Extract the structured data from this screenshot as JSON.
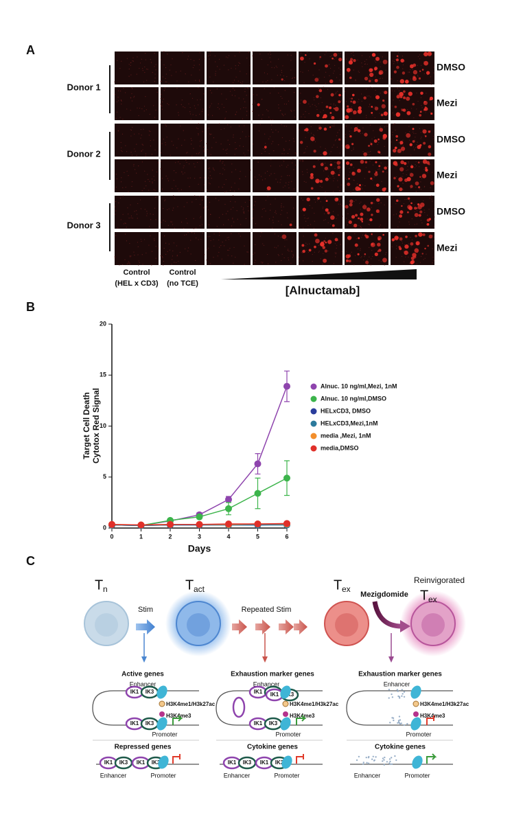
{
  "panel_a": {
    "label": "A",
    "donors": [
      "Donor 1",
      "Donor 2",
      "Donor 3"
    ],
    "row_labels": [
      "DMSO",
      "Mezi",
      "DMSO",
      "Mezi",
      "DMSO",
      "Mezi"
    ],
    "column_labels": [
      [
        "Control",
        "(HEL x CD3)"
      ],
      [
        "Control",
        "(no TCE)"
      ]
    ],
    "gradient_label": "[Alnuctamab]"
  },
  "panel_b": {
    "label": "B"
  },
  "chart_data": {
    "type": "line",
    "ylabel": [
      "Target Cell Death",
      "Cytotox Red Signal"
    ],
    "xlabel": "Days",
    "x": [
      0,
      1,
      2,
      3,
      4,
      5,
      6
    ],
    "xlim": [
      0,
      6
    ],
    "xticks": [
      0,
      1,
      2,
      3,
      4,
      5,
      6
    ],
    "ylim": [
      0,
      20
    ],
    "yticks": [
      0,
      5,
      10,
      15,
      20
    ],
    "legend": "right",
    "series": [
      {
        "name": "Alnuc. 10 ng/ml,Mezi, 1nM",
        "color": "#8e44ad",
        "values": [
          0.3,
          0.25,
          0.7,
          1.3,
          2.8,
          6.3,
          13.9
        ],
        "errors": [
          null,
          null,
          null,
          0.2,
          0.3,
          1.0,
          1.5
        ]
      },
      {
        "name": "Alnuc. 10 ng/ml,DMSO",
        "color": "#3cb44b",
        "values": [
          0.3,
          0.25,
          0.75,
          1.1,
          1.9,
          3.4,
          4.9
        ],
        "errors": [
          null,
          null,
          null,
          0.2,
          0.6,
          1.5,
          1.7
        ]
      },
      {
        "name": "HELxCD3, DMSO",
        "color": "#2a3d9c",
        "values": [
          0.3,
          0.25,
          0.3,
          0.3,
          0.3,
          0.3,
          0.35
        ],
        "errors": [
          null,
          null,
          null,
          null,
          null,
          null,
          null
        ]
      },
      {
        "name": "HELxCD3,Mezi,1nM",
        "color": "#2b7a9c",
        "values": [
          0.3,
          0.25,
          0.3,
          0.3,
          0.3,
          0.3,
          0.3
        ],
        "errors": [
          null,
          null,
          null,
          null,
          null,
          null,
          null
        ]
      },
      {
        "name": "media ,Mezi, 1nM",
        "color": "#f28e2b",
        "values": [
          0.35,
          0.3,
          0.35,
          0.35,
          0.35,
          0.4,
          0.4
        ],
        "errors": [
          null,
          null,
          null,
          null,
          null,
          null,
          null
        ]
      },
      {
        "name": "media,DMSO",
        "color": "#e0302a",
        "values": [
          0.35,
          0.3,
          0.35,
          0.35,
          0.4,
          0.4,
          0.45
        ],
        "errors": [
          null,
          null,
          null,
          null,
          null,
          null,
          null
        ]
      }
    ]
  },
  "panel_c": {
    "label": "C",
    "states": [
      {
        "symbol": "T",
        "subscript": "n"
      },
      {
        "symbol": "T",
        "subscript": "act"
      },
      {
        "symbol": "T",
        "subscript": "ex"
      },
      {
        "prefix": "Reinvigorated",
        "symbol": "T",
        "subscript": "ex"
      }
    ],
    "arrows": [
      "Stim",
      "Repeated Stim",
      "Mezigdomide"
    ],
    "columns": [
      {
        "top_title": "Active genes",
        "bottom_title": "Repressed genes"
      },
      {
        "top_title": "Exhaustion marker genes",
        "bottom_title": "Cytokine genes"
      },
      {
        "top_title": "Exhaustion marker genes",
        "bottom_title": "Cytokine genes"
      }
    ],
    "labels": {
      "enhancer": "Enhancer",
      "promoter": "Promoter",
      "mark1": "H3K4me1/H3k27ac",
      "mark2": "H3K4me3",
      "ik1": "IK1",
      "ik3": "IK3"
    }
  }
}
